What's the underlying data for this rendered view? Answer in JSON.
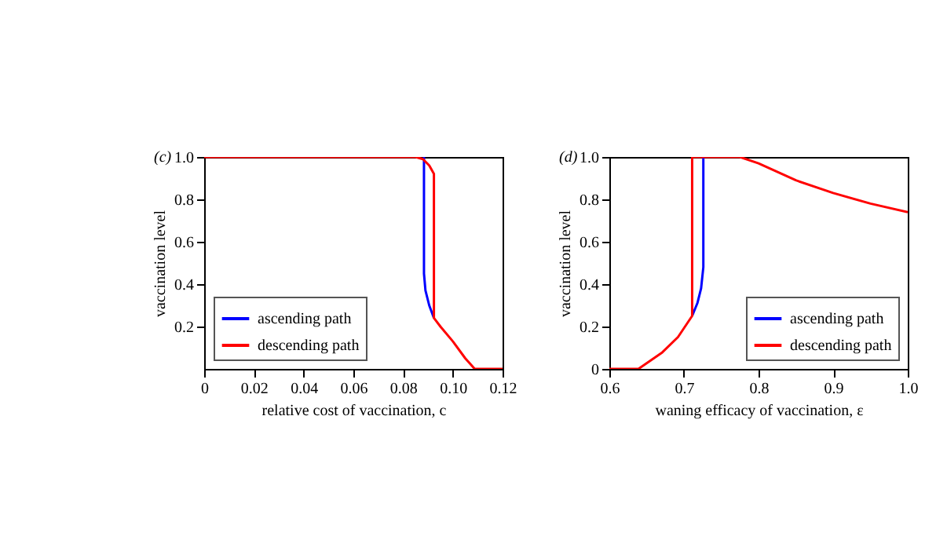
{
  "chart_data": [
    {
      "type": "line",
      "title": "(c)",
      "xlabel": "relative cost of vaccination, c",
      "ylabel": "vaccination level",
      "xlim": [
        0,
        0.12
      ],
      "ylim": [
        0,
        1
      ],
      "xticks": [
        0,
        0.02,
        0.04,
        0.06,
        0.08,
        {
          "value": 0.1,
          "label": "0.10"
        },
        0.12
      ],
      "yticks": [
        0.2,
        0.4,
        0.6,
        0.8,
        {
          "value": 1,
          "label": "1.0"
        }
      ],
      "legend": "bottom left",
      "grid": false,
      "series": [
        {
          "name": "ascending path",
          "color": "#0000ff",
          "x": [
            0.0884,
            0.0884,
            0.089,
            0.0905,
            0.0924
          ],
          "values": [
            1,
            0.45,
            0.37,
            0.3,
            0.24
          ]
        },
        {
          "name": "descending path",
          "color": "#ff0000",
          "x": [
            0,
            0.085,
            0.088,
            0.0905,
            0.0924,
            0.0924,
            0.095,
            0.1,
            0.105,
            0.1088,
            0.12
          ],
          "values": [
            1,
            1,
            0.99,
            0.96,
            0.92,
            0.24,
            0.2,
            0.13,
            0.05,
            0,
            0
          ]
        }
      ]
    },
    {
      "type": "line",
      "title": "(d)",
      "xlabel": "waning efficacy of vaccination, ε",
      "ylabel": "vaccination level",
      "xlim": [
        0.6,
        1
      ],
      "ylim": [
        0,
        1
      ],
      "xticks": [
        0.6,
        0.7,
        0.8,
        0.9,
        {
          "value": 1,
          "label": "1.0"
        }
      ],
      "yticks": [
        0,
        0.2,
        0.4,
        0.6,
        0.8,
        {
          "value": 1,
          "label": "1.0"
        }
      ],
      "legend": "bottom right",
      "grid": false,
      "series": [
        {
          "name": "ascending path",
          "color": "#0000ff",
          "x": [
            0.711,
            0.718,
            0.723,
            0.726,
            0.726
          ],
          "values": [
            0.25,
            0.31,
            0.38,
            0.48,
            1
          ]
        },
        {
          "name": "descending path",
          "color": "#ff0000",
          "x": [
            0.6,
            0.639,
            0.671,
            0.692,
            0.711,
            0.711,
            0.775,
            0.8,
            0.85,
            0.9,
            0.95,
            1
          ],
          "values": [
            0,
            0,
            0.078,
            0.15,
            0.25,
            1,
            1,
            0.97,
            0.89,
            0.83,
            0.78,
            0.74
          ]
        }
      ]
    }
  ]
}
